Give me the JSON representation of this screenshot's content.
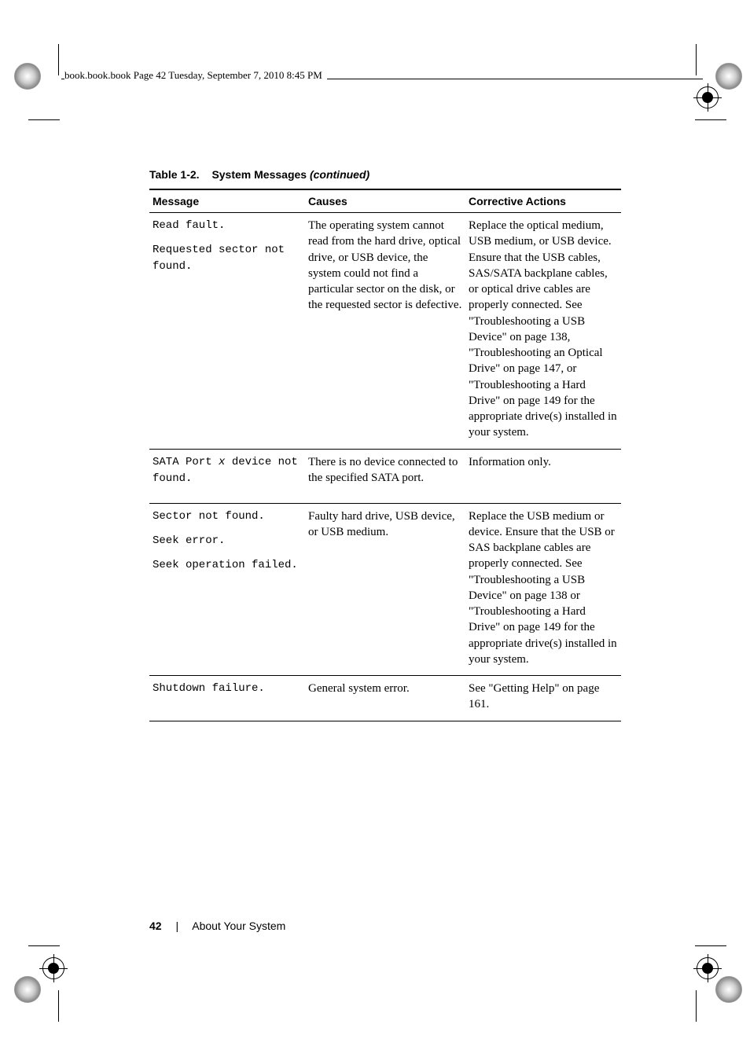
{
  "crop_header": "book.book.book  Page 42  Tuesday, September 7, 2010  8:45 PM",
  "caption": {
    "number": "Table 1-2.",
    "title": "System Messages ",
    "continued": "(continued)"
  },
  "columns": [
    "Message",
    "Causes",
    "Corrective Actions"
  ],
  "col_widths": [
    "33%",
    "34%",
    "33%"
  ],
  "rows": [
    {
      "msg_lines": [
        "Read fault.",
        "Requested sector not found."
      ],
      "causes": "The operating system cannot read from the hard drive, optical drive, or USB device, the system could not find a particular sector on the disk, or the requested sector is defective.",
      "actions": "Replace the optical medium, USB medium, or USB device. Ensure that the USB cables, SAS/SATA backplane cables, or optical drive cables are properly connected. See \"Troubleshooting a USB Device\" on page 138, \"Troubleshooting an Optical Drive\" on page 147, or \"Troubleshooting a Hard Drive\" on page 149 for the appropriate drive(s) installed in your system."
    },
    {
      "msg_lines_raw": "SATA Port <span class=\"var\">x</span> device not found.",
      "causes": "There is no device connected to the specified SATA port.",
      "actions": "Information only."
    },
    {
      "msg_lines": [
        "Sector not found.",
        "Seek error.",
        "Seek operation failed."
      ],
      "causes": "Faulty hard drive, USB device, or USB medium.",
      "actions": "Replace the USB medium or device. Ensure that the USB or SAS backplane cables are properly connected. See \"Troubleshooting a USB Device\" on page 138 or \"Troubleshooting a Hard Drive\" on page 149 for the appropriate drive(s) installed in your system."
    },
    {
      "msg_lines": [
        "Shutdown failure."
      ],
      "causes": "General system error.",
      "actions": "See \"Getting Help\" on page 161."
    }
  ],
  "footer": {
    "page": "42",
    "section": "About Your System",
    "separator": "|"
  }
}
